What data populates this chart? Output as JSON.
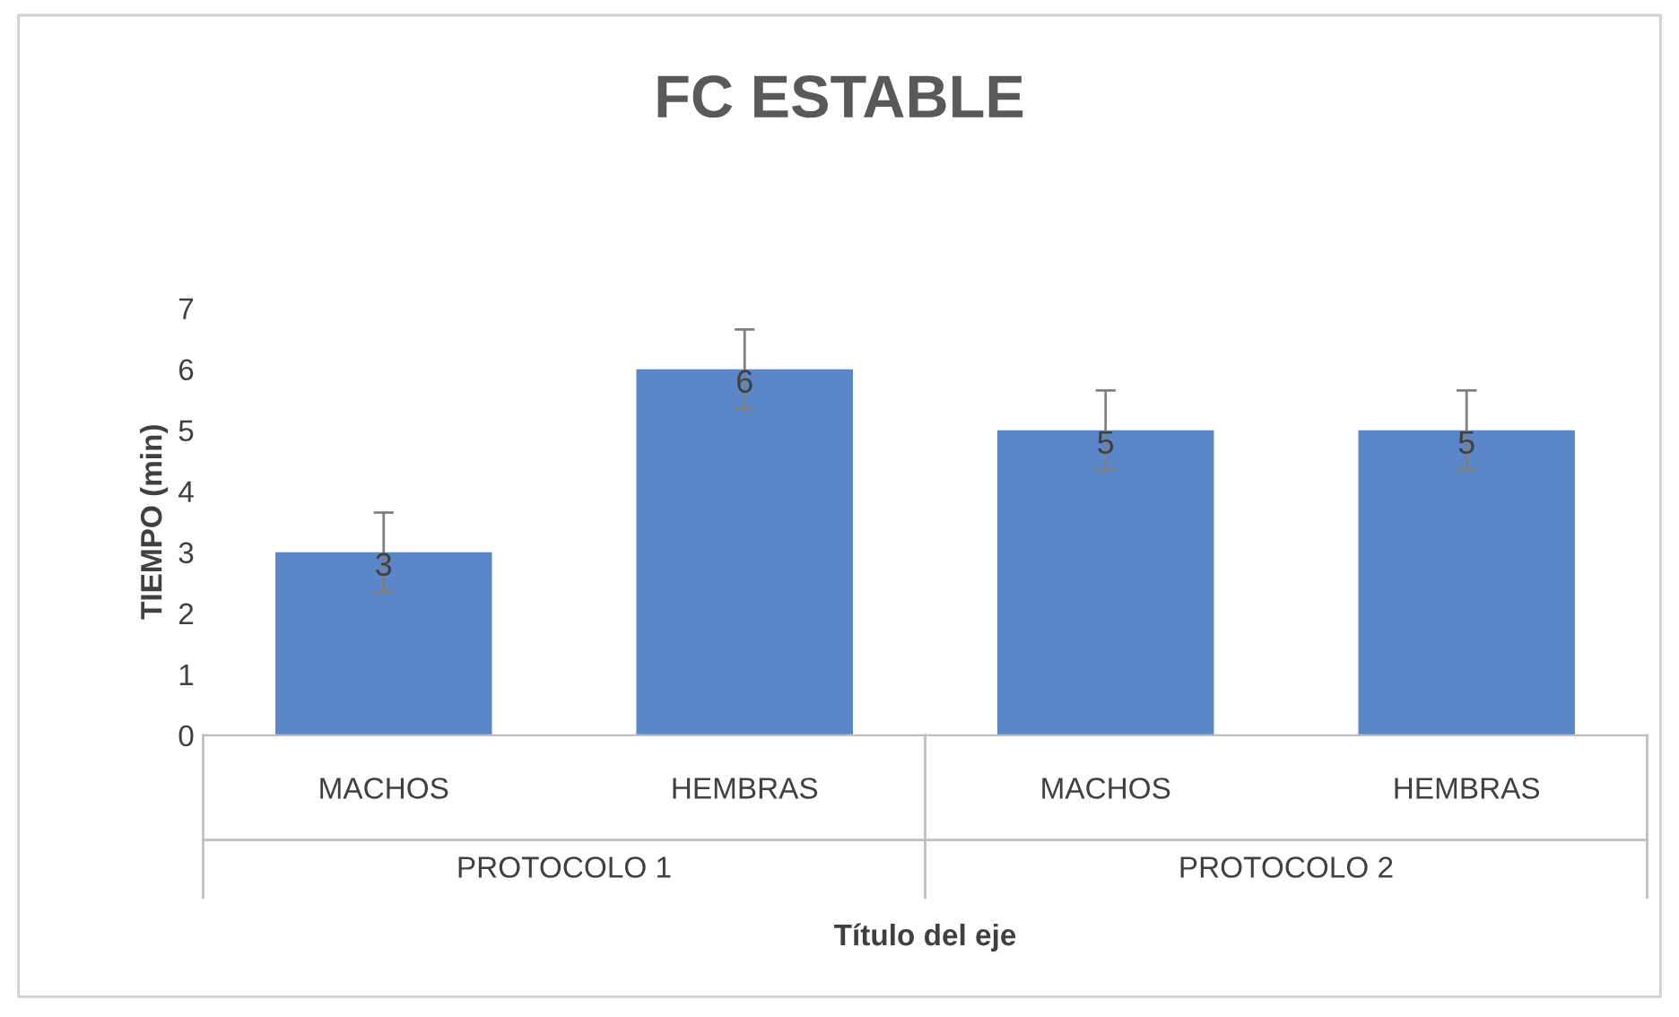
{
  "chart_data": {
    "type": "bar",
    "title": "FC ESTABLE",
    "xlabel": "Título del eje",
    "ylabel": "TIEMPO (min)",
    "categories": [
      "MACHOS",
      "HEMBRAS",
      "MACHOS",
      "HEMBRAS"
    ],
    "values": [
      3,
      6,
      5,
      5
    ],
    "errors": [
      0.65,
      0.65,
      0.65,
      0.65
    ],
    "color": "#5b87c8",
    "ylim": [
      0,
      7
    ],
    "yticks": [
      0,
      1,
      2,
      3,
      4,
      5,
      6,
      7
    ],
    "data_labels": true,
    "grid": false,
    "legend": false,
    "annotations": [
      "PROTOCOLO 1",
      "PROTOCOLO 2"
    ]
  }
}
